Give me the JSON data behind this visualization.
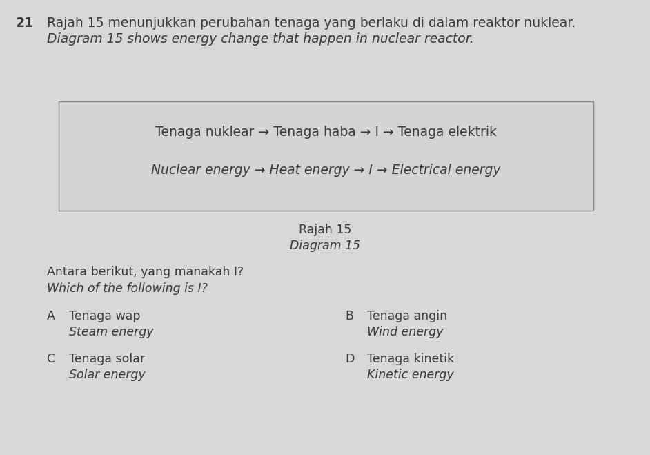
{
  "question_number": "21",
  "line1_malay": "Rajah 15 menunjukkan perubahan tenaga yang berlaku di dalam reaktor nuklear.",
  "line1_english": "Diagram 15 shows energy change that happen in nuclear reactor.",
  "box_line1": "Tenaga nuklear → Tenaga haba → I → Tenaga elektrik",
  "box_line2_italic": "Nuclear energy → Heat energy → I → Electrical energy",
  "caption_line1": "Rajah 15",
  "caption_line2_italic": "Diagram 15",
  "question_malay": "Antara berikut, yang manakah I?",
  "question_english_italic": "Which of the following is I?",
  "option_A_malay": "Tenaga wap",
  "option_A_english_italic": "Steam energy",
  "option_B_malay": "Tenaga angin",
  "option_B_english_italic": "Wind energy",
  "option_C_malay": "Tenaga solar",
  "option_C_english_italic": "Solar energy",
  "option_D_malay": "Tenaga kinetik",
  "option_D_english_italic": "Kinetic energy",
  "bg_color": "#d8d8d8",
  "text_color": "#3a3a3a",
  "box_bg": "#d4d4d4",
  "box_edge": "#888888",
  "font_size_header": 13.5,
  "font_size_body": 12.5
}
